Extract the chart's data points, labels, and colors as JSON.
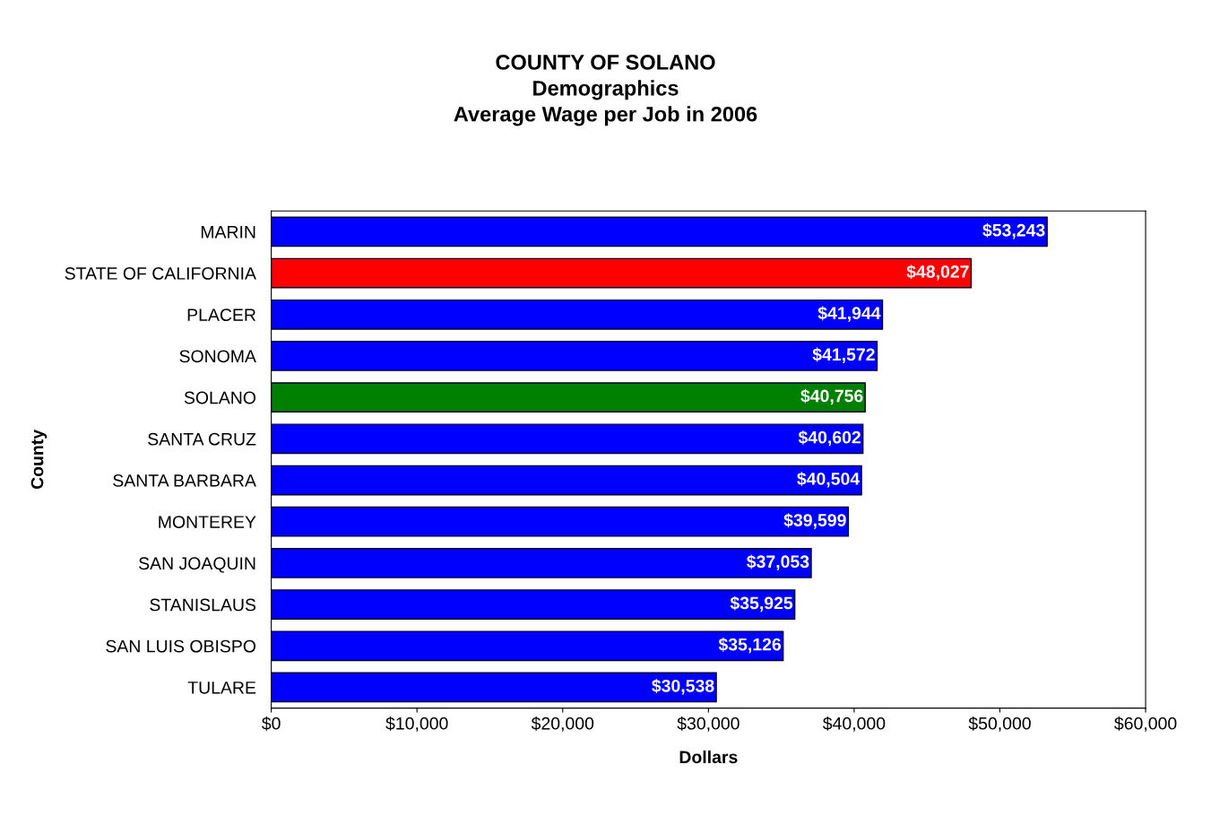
{
  "chart_data": {
    "type": "bar",
    "orientation": "horizontal",
    "title": "COUNTY OF SOLANO\nDemographics\nAverage Wage per Job in 2006",
    "xlabel": "Dollars",
    "ylabel": "County",
    "categories": [
      "MARIN",
      "STATE OF CALIFORNIA",
      "PLACER",
      "SONOMA",
      "SOLANO",
      "SANTA CRUZ",
      "SANTA BARBARA",
      "MONTEREY",
      "SAN JOAQUIN",
      "STANISLAUS",
      "SAN LUIS OBISPO",
      "TULARE"
    ],
    "values": [
      53243,
      48027,
      41944,
      41572,
      40756,
      40602,
      40504,
      39599,
      37053,
      35925,
      35126,
      30538
    ],
    "colors": [
      "#0000ff",
      "#ff0000",
      "#0000ff",
      "#0000ff",
      "#008000",
      "#0000ff",
      "#0000ff",
      "#0000ff",
      "#0000ff",
      "#0000ff",
      "#0000ff",
      "#0000ff"
    ],
    "value_labels": [
      "$53,243",
      "$48,027",
      "$41,944",
      "$41,572",
      "$40,756",
      "$40,602",
      "$40,504",
      "$39,599",
      "$37,053",
      "$35,925",
      "$35,126",
      "$30,538"
    ],
    "xlim": [
      0,
      60000
    ],
    "xticks": [
      {
        "value": 0,
        "label": "$0"
      },
      {
        "value": 10000,
        "label": "$10,000"
      },
      {
        "value": 20000,
        "label": "$20,000"
      },
      {
        "value": 30000,
        "label": "$30,000"
      },
      {
        "value": 40000,
        "label": "$40,000"
      },
      {
        "value": 50000,
        "label": "$50,000"
      },
      {
        "value": 60000,
        "label": "$60,000"
      }
    ],
    "grid": false,
    "legend": false
  }
}
